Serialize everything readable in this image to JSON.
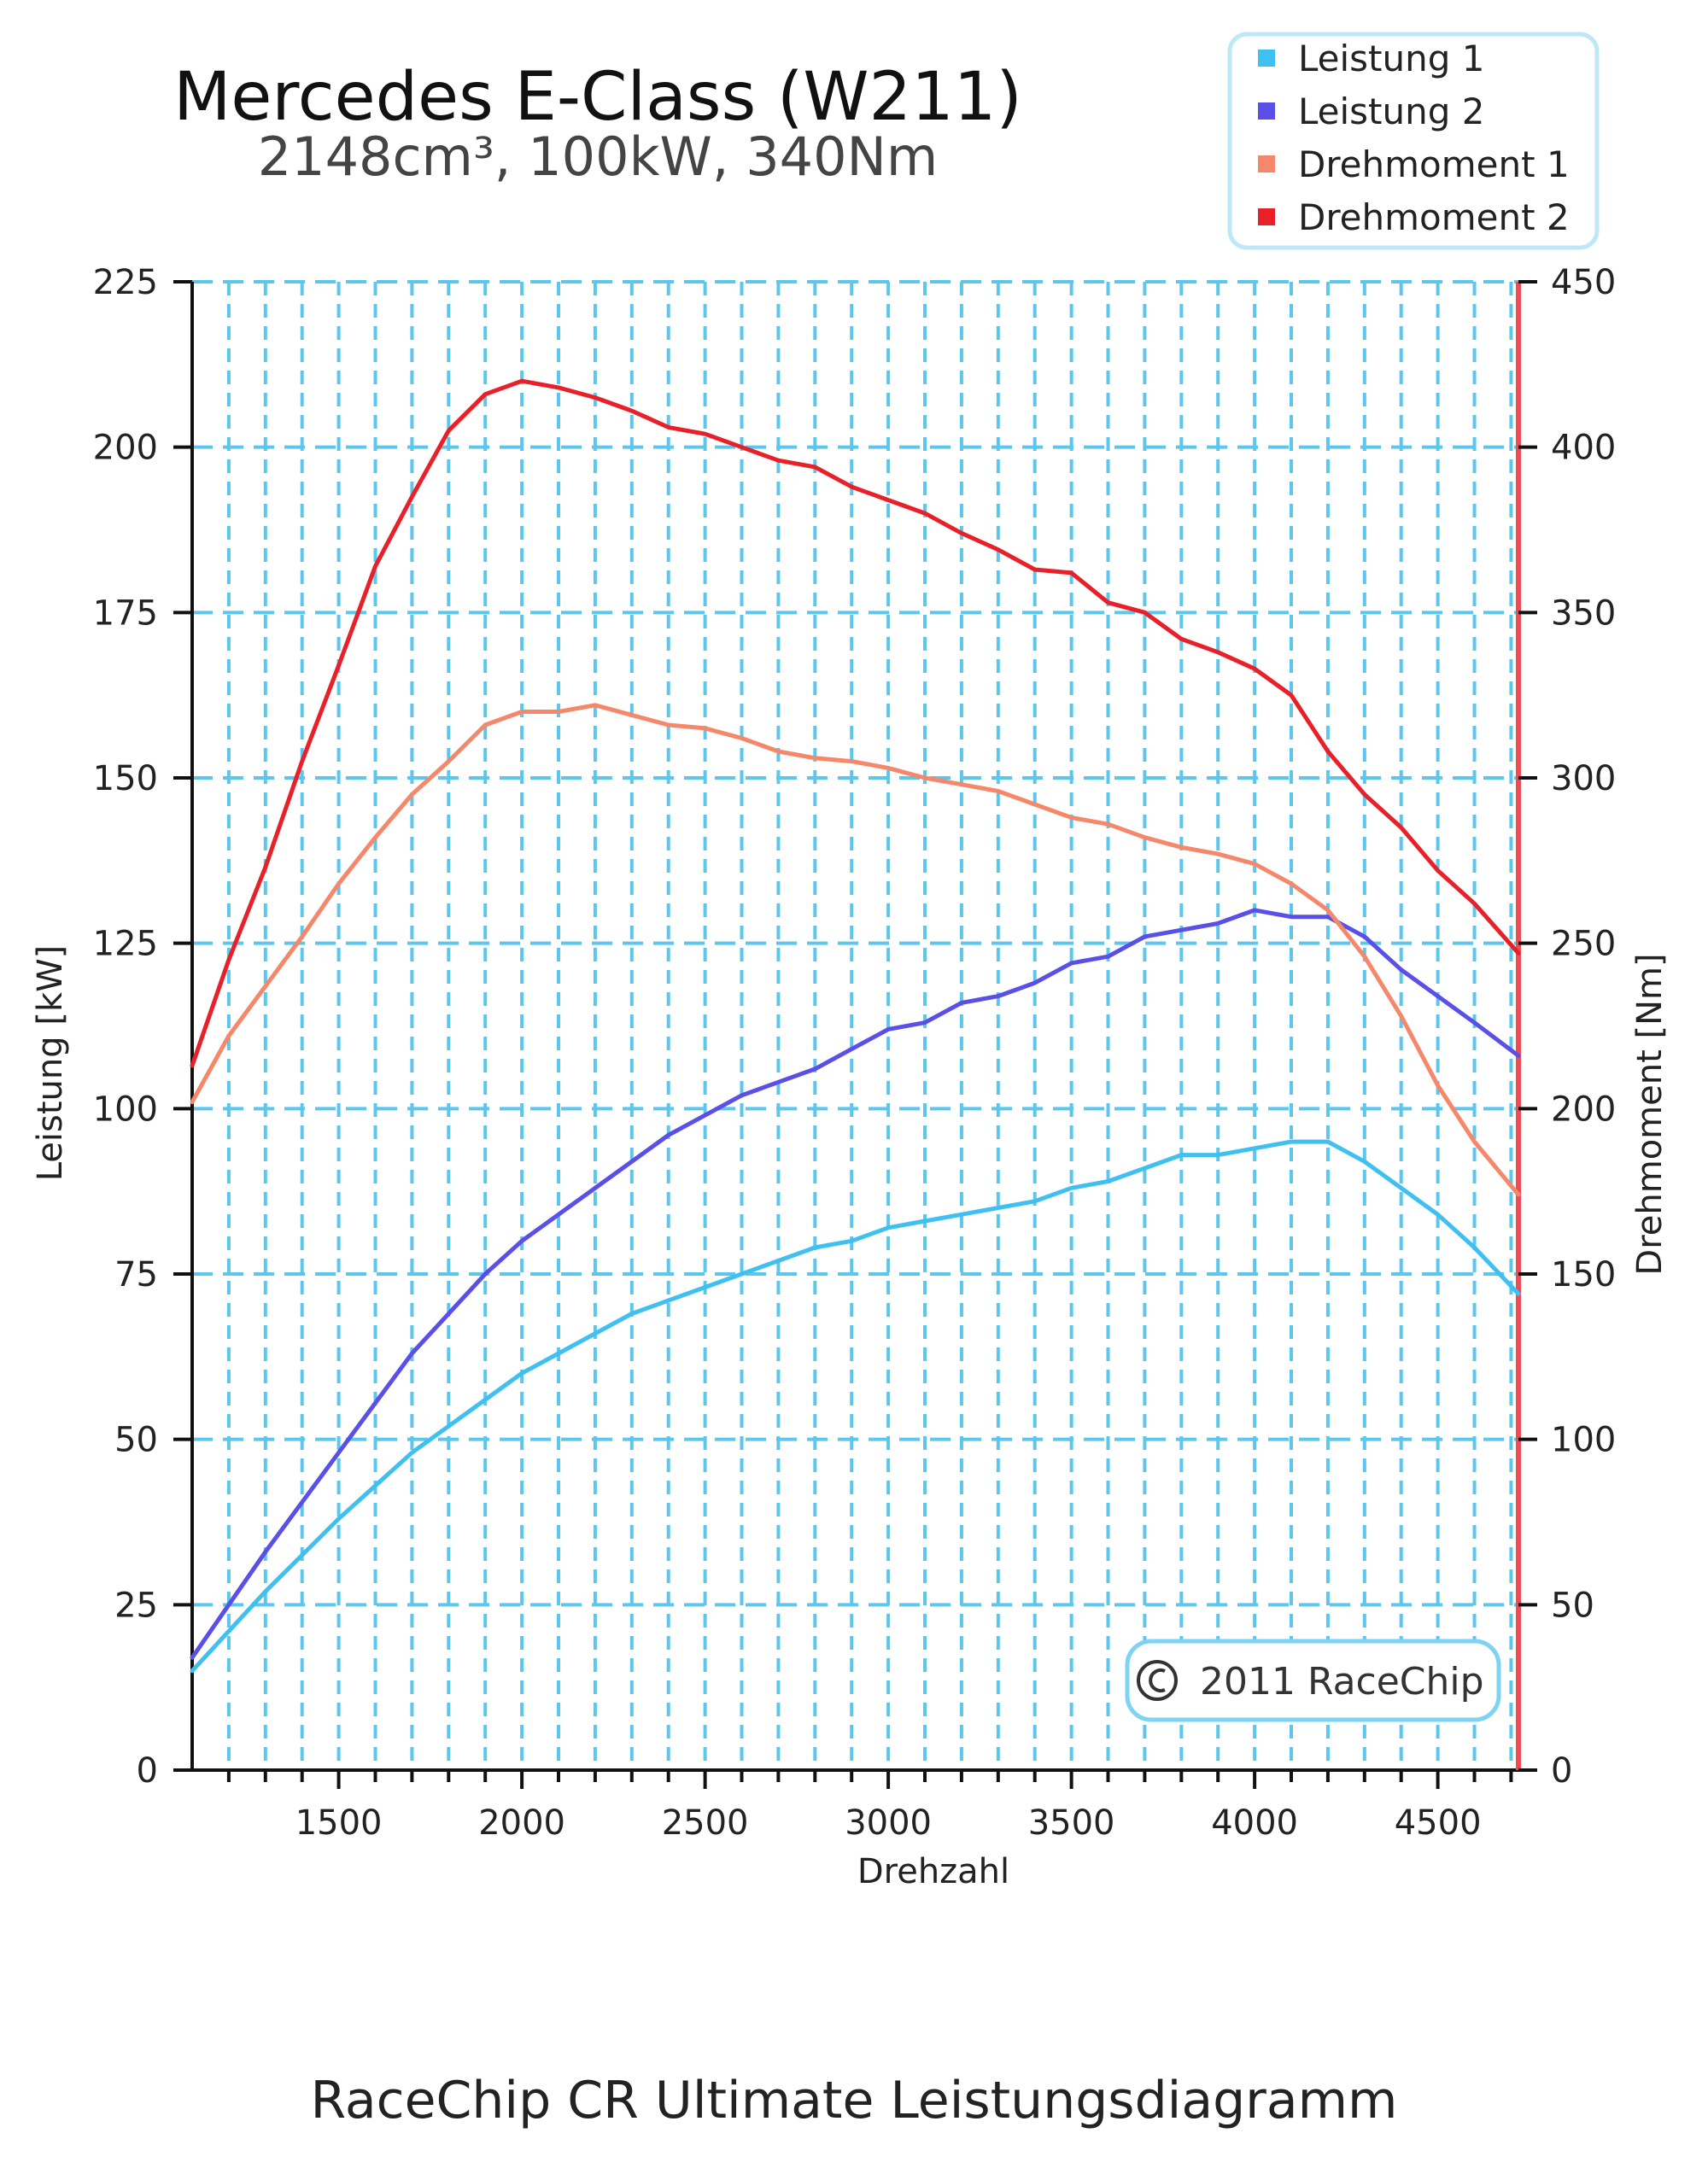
{
  "caption": "RaceChip CR Ultimate Leistungsdiagramm",
  "chart_data": {
    "type": "line",
    "title": "Mercedes E-Class (W211)",
    "subtitle": "2148cm³, 100kW, 340Nm",
    "xlabel": "Drehzahl",
    "ylabel_left": "Leistung [kW]",
    "ylabel_right": "Drehmoment [Nm]",
    "xlim": [
      1100,
      4720
    ],
    "ylim_left": [
      0,
      225
    ],
    "ylim_right": [
      0,
      450
    ],
    "x_ticks": [
      1500,
      2000,
      2500,
      3000,
      3500,
      4000,
      4500
    ],
    "y_ticks_left": [
      0,
      25,
      50,
      75,
      100,
      125,
      150,
      175,
      200,
      225
    ],
    "y_ticks_right": [
      0,
      50,
      100,
      150,
      200,
      250,
      300,
      350,
      400,
      450
    ],
    "grid": true,
    "legend_position": "top-right",
    "watermark": "2011 RaceChip",
    "watermark_symbol": "©",
    "series": [
      {
        "name": "Leistung 1",
        "axis": "left",
        "color": "#3FC0F0",
        "x": [
          1100,
          1300,
          1500,
          1700,
          1900,
          2000,
          2100,
          2200,
          2300,
          2400,
          2500,
          2600,
          2700,
          2800,
          2900,
          3000,
          3100,
          3200,
          3300,
          3400,
          3500,
          3600,
          3700,
          3800,
          3900,
          4000,
          4100,
          4200,
          4300,
          4400,
          4500,
          4600,
          4720
        ],
        "values": [
          15,
          27,
          38,
          48,
          56,
          60,
          63,
          66,
          69,
          71,
          73,
          75,
          77,
          79,
          80,
          82,
          83,
          84,
          85,
          86,
          88,
          89,
          91,
          93,
          93,
          94,
          95,
          95,
          92,
          88,
          84,
          79,
          72
        ]
      },
      {
        "name": "Leistung 2",
        "axis": "left",
        "color": "#5A4FE6",
        "x": [
          1100,
          1300,
          1500,
          1700,
          1900,
          2000,
          2100,
          2200,
          2300,
          2400,
          2500,
          2600,
          2700,
          2800,
          2900,
          3000,
          3100,
          3200,
          3300,
          3400,
          3500,
          3600,
          3700,
          3800,
          3900,
          4000,
          4100,
          4200,
          4300,
          4400,
          4500,
          4600,
          4720
        ],
        "values": [
          17,
          33,
          48,
          63,
          75,
          80,
          84,
          88,
          92,
          96,
          99,
          102,
          104,
          106,
          109,
          112,
          113,
          116,
          117,
          119,
          122,
          123,
          126,
          127,
          128,
          130,
          129,
          129,
          126,
          121,
          117,
          113,
          108
        ]
      },
      {
        "name": "Drehmoment 1",
        "axis": "right",
        "color": "#F5876A",
        "x": [
          1100,
          1200,
          1300,
          1400,
          1500,
          1600,
          1700,
          1800,
          1900,
          2000,
          2100,
          2200,
          2300,
          2400,
          2500,
          2600,
          2700,
          2800,
          2900,
          3000,
          3100,
          3200,
          3300,
          3400,
          3500,
          3600,
          3700,
          3800,
          3900,
          4000,
          4100,
          4200,
          4300,
          4400,
          4500,
          4600,
          4720
        ],
        "values": [
          202,
          222,
          237,
          252,
          268,
          282,
          295,
          305,
          316,
          320,
          320,
          322,
          319,
          316,
          315,
          312,
          308,
          306,
          305,
          303,
          300,
          298,
          296,
          292,
          288,
          286,
          282,
          279,
          277,
          274,
          268,
          260,
          246,
          228,
          207,
          190,
          174
        ]
      },
      {
        "name": "Drehmoment 2",
        "axis": "right",
        "color": "#E8202A",
        "x": [
          1100,
          1200,
          1300,
          1400,
          1500,
          1600,
          1700,
          1800,
          1900,
          2000,
          2100,
          2200,
          2300,
          2400,
          2500,
          2600,
          2700,
          2800,
          2900,
          3000,
          3100,
          3200,
          3300,
          3400,
          3500,
          3600,
          3700,
          3800,
          3900,
          4000,
          4100,
          4200,
          4300,
          4400,
          4500,
          4600,
          4720
        ],
        "values": [
          213,
          245,
          273,
          305,
          334,
          364,
          385,
          405,
          416,
          420,
          418,
          415,
          411,
          406,
          404,
          400,
          396,
          394,
          388,
          384,
          380,
          374,
          369,
          363,
          362,
          353,
          350,
          342,
          338,
          333,
          325,
          308,
          295,
          285,
          272,
          262,
          247
        ]
      }
    ]
  }
}
